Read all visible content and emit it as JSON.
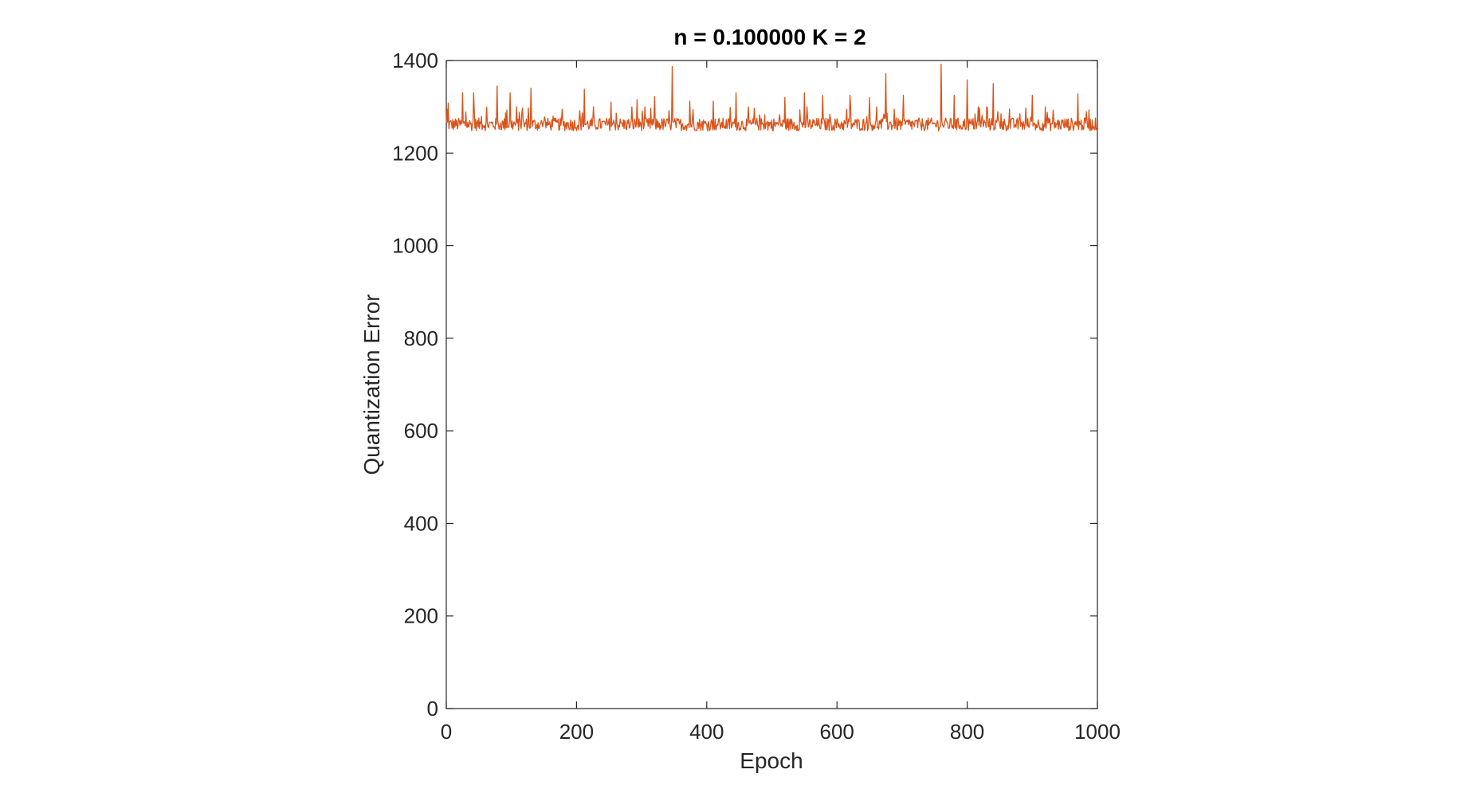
{
  "chart_data": {
    "type": "line",
    "title": "n = 0.100000 K = 2",
    "xlabel": "Epoch",
    "ylabel": "Quantization Error",
    "xlim": [
      0,
      1000
    ],
    "ylim": [
      0,
      1400
    ],
    "xticks": [
      0,
      200,
      400,
      600,
      800,
      1000
    ],
    "yticks": [
      0,
      200,
      400,
      600,
      800,
      1000,
      1200,
      1400
    ],
    "grid": false,
    "legend": "none",
    "line_color": "#D95319",
    "series": [
      {
        "baseline": 1262,
        "noise_range": [
          1240,
          1300
        ],
        "spikes": [
          {
            "x": 3,
            "y": 1308
          },
          {
            "x": 25,
            "y": 1330
          },
          {
            "x": 42,
            "y": 1330
          },
          {
            "x": 78,
            "y": 1345
          },
          {
            "x": 98,
            "y": 1330
          },
          {
            "x": 130,
            "y": 1340
          },
          {
            "x": 212,
            "y": 1338
          },
          {
            "x": 253,
            "y": 1310
          },
          {
            "x": 293,
            "y": 1315
          },
          {
            "x": 320,
            "y": 1322
          },
          {
            "x": 347,
            "y": 1387
          },
          {
            "x": 374,
            "y": 1312
          },
          {
            "x": 410,
            "y": 1312
          },
          {
            "x": 445,
            "y": 1330
          },
          {
            "x": 520,
            "y": 1320
          },
          {
            "x": 550,
            "y": 1330
          },
          {
            "x": 578,
            "y": 1325
          },
          {
            "x": 620,
            "y": 1325
          },
          {
            "x": 650,
            "y": 1320
          },
          {
            "x": 675,
            "y": 1372
          },
          {
            "x": 702,
            "y": 1325
          },
          {
            "x": 760,
            "y": 1392
          },
          {
            "x": 780,
            "y": 1325
          },
          {
            "x": 800,
            "y": 1358
          },
          {
            "x": 840,
            "y": 1350
          },
          {
            "x": 900,
            "y": 1325
          },
          {
            "x": 970,
            "y": 1328
          }
        ]
      }
    ]
  }
}
